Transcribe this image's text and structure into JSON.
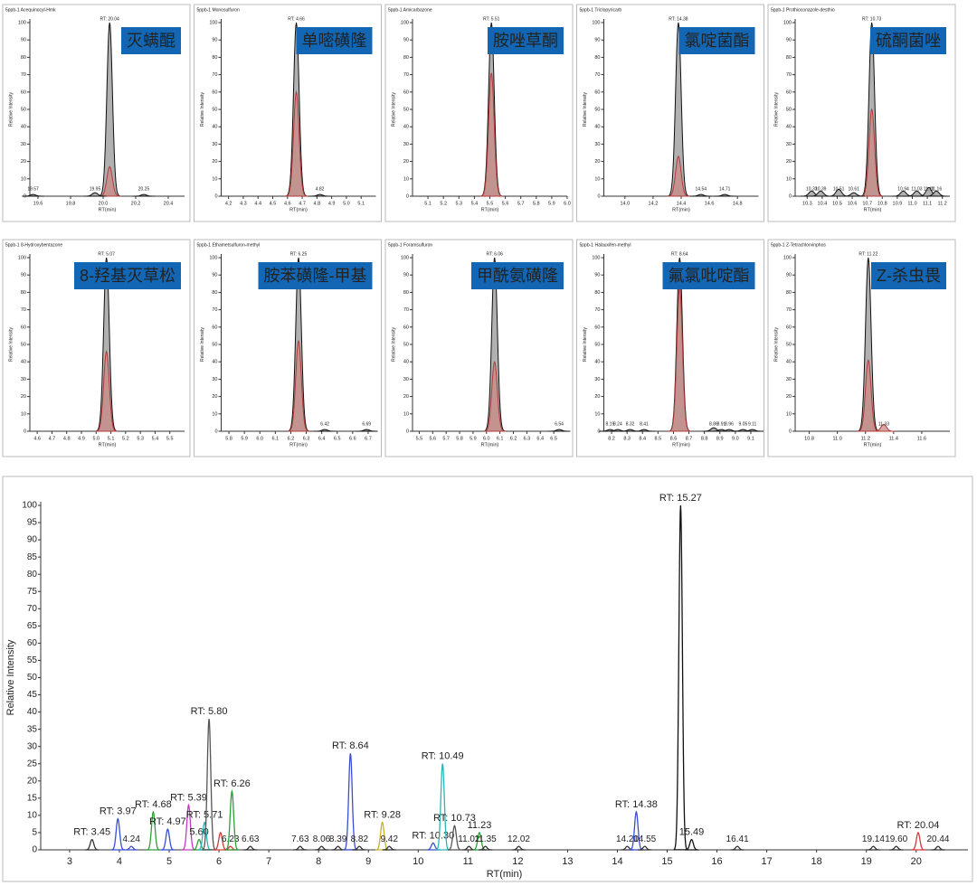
{
  "chart_data": [
    {
      "type": "chromatogram",
      "header": "5ppb-1  Acequinocyl-Hmk",
      "title": "灭螨醌",
      "xlabel": "RT(min)",
      "ylabel": "Relative Intensity",
      "xlim": [
        19.55,
        20.5
      ],
      "xticks": [
        19.6,
        19.8,
        {
          "value": 20,
          "label": "20.0"
        },
        20.2,
        20.4
      ],
      "ylim": [
        0,
        100
      ],
      "yticks": [
        0,
        10,
        20,
        30,
        40,
        50,
        60,
        70,
        80,
        90,
        100
      ],
      "peaks": [
        {
          "x": 20.04,
          "height": 100,
          "color": "#a9a9a9",
          "label": "RT: 20.04"
        },
        {
          "x": 20.04,
          "height": 17,
          "color": "#c98a85"
        },
        {
          "x": 19.57,
          "height": 1,
          "color": "#a9a9a9",
          "label": "19.57"
        },
        {
          "x": 19.95,
          "height": 2,
          "color": "#a9a9a9",
          "label": "19.95"
        },
        {
          "x": 20.25,
          "height": 1,
          "color": "#a9a9a9",
          "label": "20.25"
        }
      ]
    },
    {
      "type": "chromatogram",
      "header": "5ppb-1  Monosulfuron",
      "title": "单嘧磺隆",
      "xlabel": "RT(min)",
      "ylabel": "Relative Intensity",
      "xlim": [
        4.15,
        5.2
      ],
      "xticks": [
        4.2,
        4.3,
        4.4,
        4.5,
        4.6,
        4.7,
        4.8,
        4.9,
        {
          "value": 5,
          "label": "5.0"
        },
        5.1
      ],
      "ylim": [
        0,
        100
      ],
      "yticks": [
        0,
        10,
        20,
        30,
        40,
        50,
        60,
        70,
        80,
        90,
        100
      ],
      "peaks": [
        {
          "x": 4.66,
          "height": 100,
          "color": "#a9a9a9",
          "label": "RT: 4.66"
        },
        {
          "x": 4.66,
          "height": 60,
          "color": "#c98a85"
        },
        {
          "x": 4.82,
          "height": 1,
          "color": "#a9a9a9",
          "label": "4.82"
        }
      ]
    },
    {
      "type": "chromatogram",
      "header": "5ppb-1  Amicarbazone",
      "title": "胺唑草酮",
      "xlabel": "RT(min)",
      "ylabel": "Relative Intensity",
      "xlim": [
        5.0,
        6.0
      ],
      "xticks": [
        5.1,
        5.2,
        5.3,
        5.4,
        5.5,
        5.6,
        5.7,
        5.8,
        5.9,
        {
          "value": 6,
          "label": "6.0"
        }
      ],
      "ylim": [
        0,
        100
      ],
      "yticks": [
        0,
        10,
        20,
        30,
        40,
        50,
        60,
        70,
        80,
        90,
        100
      ],
      "peaks": [
        {
          "x": 5.51,
          "height": 100,
          "color": "#a9a9a9",
          "label": "RT: 5.51"
        },
        {
          "x": 5.51,
          "height": 71,
          "color": "#c98a85"
        }
      ]
    },
    {
      "type": "chromatogram",
      "header": "5ppb-1  Triclopyricarb",
      "title": "氯啶菌酯",
      "xlabel": "RT(min)",
      "ylabel": "Relative Intensity",
      "xlim": [
        13.85,
        14.95
      ],
      "xticks": [
        {
          "value": 14,
          "label": "14.0"
        },
        14.2,
        14.4,
        14.6,
        14.8
      ],
      "ylim": [
        0,
        100
      ],
      "yticks": [
        0,
        10,
        20,
        30,
        40,
        50,
        60,
        70,
        80,
        90,
        100
      ],
      "peaks": [
        {
          "x": 14.38,
          "height": 100,
          "color": "#a9a9a9",
          "label": "RT: 14.38"
        },
        {
          "x": 14.38,
          "height": 23,
          "color": "#c98a85"
        },
        {
          "x": 14.54,
          "height": 1,
          "color": "#a9a9a9",
          "label": "14.54"
        },
        {
          "x": 14.71,
          "height": 1,
          "color": "#a9a9a9",
          "label": "14.71"
        }
      ]
    },
    {
      "type": "chromatogram",
      "header": "5ppb-1  Prothioconazole-desthio",
      "title": "硫酮菌唑",
      "xlabel": "RT(min)",
      "ylabel": "Relative Intensity",
      "xlim": [
        10.22,
        11.25
      ],
      "xticks": [
        10.3,
        10.4,
        10.5,
        10.6,
        10.7,
        10.8,
        10.9,
        {
          "value": 11,
          "label": "11.0"
        },
        11.1,
        11.2
      ],
      "ylim": [
        0,
        100
      ],
      "yticks": [
        0,
        10,
        20,
        30,
        40,
        50,
        60,
        70,
        80,
        90,
        100
      ],
      "peaks": [
        {
          "x": 10.73,
          "height": 100,
          "color": "#a9a9a9",
          "label": "RT: 10.73"
        },
        {
          "x": 10.73,
          "height": 50,
          "color": "#c98a85"
        },
        {
          "x": 10.33,
          "height": 3,
          "color": "#a9a9a9",
          "label": "10.33"
        },
        {
          "x": 10.39,
          "height": 3,
          "color": "#a9a9a9",
          "label": "10.39"
        },
        {
          "x": 10.51,
          "height": 4,
          "color": "#a9a9a9",
          "label": "10.51"
        },
        {
          "x": 10.61,
          "height": 2,
          "color": "#a9a9a9",
          "label": "10.61"
        },
        {
          "x": 10.94,
          "height": 3,
          "color": "#a9a9a9",
          "label": "10.94"
        },
        {
          "x": 11.03,
          "height": 3,
          "color": "#a9a9a9",
          "label": "11.03"
        },
        {
          "x": 11.11,
          "height": 5,
          "color": "#a9a9a9",
          "label": "11.11"
        },
        {
          "x": 11.16,
          "height": 3,
          "color": "#a9a9a9",
          "label": "11.16"
        }
      ]
    },
    {
      "type": "chromatogram",
      "header": "5ppb-1  8-Hydroxybentazone",
      "title": "8-羟基灭草松",
      "xlabel": "RT(min)",
      "ylabel": "Relative Intensity",
      "xlim": [
        4.55,
        5.6
      ],
      "xticks": [
        4.6,
        4.7,
        4.8,
        4.9,
        {
          "value": 5,
          "label": "5.0"
        },
        5.1,
        5.2,
        5.3,
        5.4,
        5.5
      ],
      "ylim": [
        0,
        100
      ],
      "yticks": [
        0,
        10,
        20,
        30,
        40,
        50,
        60,
        70,
        80,
        90,
        100
      ],
      "peaks": [
        {
          "x": 5.07,
          "height": 100,
          "color": "#a9a9a9",
          "label": "RT: 5.07"
        },
        {
          "x": 5.07,
          "height": 46,
          "color": "#c98a85"
        }
      ]
    },
    {
      "type": "chromatogram",
      "header": "5ppb-1  Ethametsulfuron-methyl",
      "title": "胺苯磺隆-甲基",
      "xlabel": "RT(min)",
      "ylabel": "Relative Intensity",
      "xlim": [
        5.75,
        6.75
      ],
      "xticks": [
        5.8,
        5.9,
        {
          "value": 6,
          "label": "6.0"
        },
        6.1,
        6.2,
        6.3,
        6.4,
        6.5,
        6.6,
        6.7
      ],
      "ylim": [
        0,
        100
      ],
      "yticks": [
        0,
        10,
        20,
        30,
        40,
        50,
        60,
        70,
        80,
        90,
        100
      ],
      "peaks": [
        {
          "x": 6.25,
          "height": 100,
          "color": "#a9a9a9",
          "label": "RT: 6.25"
        },
        {
          "x": 6.25,
          "height": 52,
          "color": "#c98a85"
        },
        {
          "x": 6.42,
          "height": 1,
          "color": "#a9a9a9",
          "label": "6.42"
        },
        {
          "x": 6.69,
          "height": 1,
          "color": "#a9a9a9",
          "label": "6.69"
        }
      ]
    },
    {
      "type": "chromatogram",
      "header": "5ppb-1  Foramsulfuron",
      "title": "甲酰氨磺隆",
      "xlabel": "RT(min)",
      "ylabel": "Relative Intensity",
      "xlim": [
        5.45,
        6.6
      ],
      "xticks": [
        5.5,
        5.6,
        5.7,
        5.8,
        5.9,
        {
          "value": 6,
          "label": "6.0"
        },
        6.1,
        6.2,
        6.3,
        6.4,
        6.5
      ],
      "ylim": [
        0,
        100
      ],
      "yticks": [
        0,
        10,
        20,
        30,
        40,
        50,
        60,
        70,
        80,
        90,
        100
      ],
      "peaks": [
        {
          "x": 6.06,
          "height": 100,
          "color": "#a9a9a9",
          "label": "RT: 6.06"
        },
        {
          "x": 6.06,
          "height": 40,
          "color": "#c98a85"
        },
        {
          "x": 6.54,
          "height": 1,
          "color": "#a9a9a9",
          "label": "6.54"
        }
      ]
    },
    {
      "type": "chromatogram",
      "header": "5ppb-1  Halauxifen-methyl",
      "title": "氟氯吡啶酯",
      "xlabel": "RT(min)",
      "ylabel": "Relative Intensity",
      "xlim": [
        8.15,
        9.15
      ],
      "xticks": [
        8.2,
        8.3,
        8.4,
        8.5,
        8.6,
        8.7,
        8.8,
        8.9,
        {
          "value": 9,
          "label": "9.0"
        },
        9.1
      ],
      "ylim": [
        0,
        100
      ],
      "yticks": [
        0,
        10,
        20,
        30,
        40,
        50,
        60,
        70,
        80,
        90,
        100
      ],
      "peaks": [
        {
          "x": 8.64,
          "height": 100,
          "color": "#a9a9a9",
          "label": "RT: 8.64"
        },
        {
          "x": 8.64,
          "height": 83,
          "color": "#c98a85"
        },
        {
          "x": 8.19,
          "height": 1,
          "color": "#a9a9a9",
          "label": "8.19"
        },
        {
          "x": 8.24,
          "height": 1,
          "color": "#a9a9a9",
          "label": "8.24"
        },
        {
          "x": 8.32,
          "height": 1,
          "color": "#a9a9a9",
          "label": "8.32"
        },
        {
          "x": 8.41,
          "height": 1,
          "color": "#a9a9a9",
          "label": "8.41"
        },
        {
          "x": 8.86,
          "height": 2,
          "color": "#a9a9a9",
          "label": "8.86"
        },
        {
          "x": 8.91,
          "height": 1,
          "color": "#a9a9a9",
          "label": "8.91"
        },
        {
          "x": 8.96,
          "height": 1,
          "color": "#a9a9a9",
          "label": "8.96"
        },
        {
          "x": 9.05,
          "height": 1,
          "color": "#a9a9a9",
          "label": "9.05"
        },
        {
          "x": 9.11,
          "height": 1,
          "color": "#a9a9a9",
          "label": "9.11"
        }
      ]
    },
    {
      "type": "chromatogram",
      "header": "5ppb-1  Z-Tetrachlorvinphos",
      "title": "Z-杀虫畏",
      "xlabel": "RT(min)",
      "ylabel": "Relative Intensity",
      "xlim": [
        10.7,
        11.8
      ],
      "xticks": [
        10.8,
        {
          "value": 11,
          "label": "11.0"
        },
        11.2,
        11.4,
        11.6
      ],
      "ylim": [
        0,
        100
      ],
      "yticks": [
        0,
        10,
        20,
        30,
        40,
        50,
        60,
        70,
        80,
        90,
        100
      ],
      "peaks": [
        {
          "x": 11.22,
          "height": 100,
          "color": "#a9a9a9",
          "label": "RT: 11.22"
        },
        {
          "x": 11.22,
          "height": 41,
          "color": "#c98a85"
        },
        {
          "x": 11.33,
          "height": 4,
          "color": "#c98a85",
          "label": "11.33"
        }
      ]
    },
    {
      "type": "chromatogram",
      "xlabel": "RT(min)",
      "ylabel": "Relative Intensity",
      "xlim": [
        2.42,
        21.04
      ],
      "xticks": [
        3,
        4,
        5,
        6,
        7,
        8,
        9,
        10,
        11,
        12,
        13,
        14,
        15,
        16,
        17,
        18,
        19,
        20
      ],
      "ylim": [
        0,
        100
      ],
      "yticks": [
        0,
        5,
        10,
        15,
        20,
        25,
        30,
        35,
        40,
        45,
        50,
        55,
        60,
        65,
        70,
        75,
        80,
        85,
        90,
        95,
        100
      ],
      "peaks": [
        {
          "x": 3.45,
          "height": 3,
          "color": "#333333",
          "label": "RT: 3.45"
        },
        {
          "x": 3.97,
          "height": 9,
          "color": "#3a4fd0",
          "label": "RT: 3.97"
        },
        {
          "x": 4.24,
          "height": 1,
          "color": "#3a4fd0",
          "label": "4.24"
        },
        {
          "x": 4.68,
          "height": 11,
          "color": "#2e9e3a",
          "label": "RT: 4.68"
        },
        {
          "x": 4.97,
          "height": 6,
          "color": "#3a4fd0",
          "label": "RT: 4.97"
        },
        {
          "x": 5.39,
          "height": 13,
          "color": "#c23cc2",
          "label": "RT: 5.39"
        },
        {
          "x": 5.6,
          "height": 3,
          "color": "#2e9e3a",
          "label": "5.60"
        },
        {
          "x": 5.71,
          "height": 8,
          "color": "#2bb5b5",
          "label": "RT: 5.71"
        },
        {
          "x": 5.8,
          "height": 38,
          "color": "#555555",
          "label": "RT: 5.80"
        },
        {
          "x": 6.03,
          "height": 5,
          "color": "#d03a3a"
        },
        {
          "x": 6.23,
          "height": 1,
          "color": "#d03a3a",
          "label": "6.23"
        },
        {
          "x": 6.26,
          "height": 17,
          "color": "#2e9e3a",
          "label": "RT: 6.26"
        },
        {
          "x": 6.63,
          "height": 1,
          "color": "#333333",
          "label": "6.63"
        },
        {
          "x": 7.63,
          "height": 1,
          "color": "#333333",
          "label": "7.63"
        },
        {
          "x": 8.06,
          "height": 1,
          "color": "#333333",
          "label": "8.06"
        },
        {
          "x": 8.39,
          "height": 1,
          "color": "#333333",
          "label": "8.39"
        },
        {
          "x": 8.64,
          "height": 28,
          "color": "#3a4fd0",
          "label": "RT: 8.64"
        },
        {
          "x": 8.82,
          "height": 1,
          "color": "#333333",
          "label": "8.82"
        },
        {
          "x": 9.28,
          "height": 8,
          "color": "#c8b030",
          "label": "RT: 9.28"
        },
        {
          "x": 9.42,
          "height": 1,
          "color": "#333333",
          "label": "9.42"
        },
        {
          "x": 10.3,
          "height": 2,
          "color": "#3a4fd0",
          "label": "RT: 10.30"
        },
        {
          "x": 10.49,
          "height": 25,
          "color": "#2bb5b5",
          "label": "RT: 10.49"
        },
        {
          "x": 10.73,
          "height": 7,
          "color": "#555555",
          "label": "RT: 10.73"
        },
        {
          "x": 11.02,
          "height": 1,
          "color": "#333333",
          "label": "11.02"
        },
        {
          "x": 11.23,
          "height": 5,
          "color": "#2e9e3a",
          "label": "11.23"
        },
        {
          "x": 11.35,
          "height": 1,
          "color": "#333333",
          "label": "11.35"
        },
        {
          "x": 12.02,
          "height": 1,
          "color": "#333333",
          "label": "12.02"
        },
        {
          "x": 14.2,
          "height": 1,
          "color": "#333333",
          "label": "14.20"
        },
        {
          "x": 14.38,
          "height": 11,
          "color": "#3a4fd0",
          "label": "RT: 14.38"
        },
        {
          "x": 14.55,
          "height": 1,
          "color": "#333333",
          "label": "14.55"
        },
        {
          "x": 15.27,
          "height": 100,
          "color": "#111111",
          "label": "RT: 15.27"
        },
        {
          "x": 15.49,
          "height": 3,
          "color": "#111111",
          "label": "15.49"
        },
        {
          "x": 16.41,
          "height": 1,
          "color": "#333333",
          "label": "16.41"
        },
        {
          "x": 19.14,
          "height": 1,
          "color": "#333333",
          "label": "19.14"
        },
        {
          "x": 19.6,
          "height": 1,
          "color": "#333333",
          "label": "19.60"
        },
        {
          "x": 20.04,
          "height": 5,
          "color": "#d03a3a",
          "label": "RT: 20.04"
        },
        {
          "x": 20.44,
          "height": 1,
          "color": "#333333",
          "label": "20.44"
        }
      ]
    }
  ]
}
